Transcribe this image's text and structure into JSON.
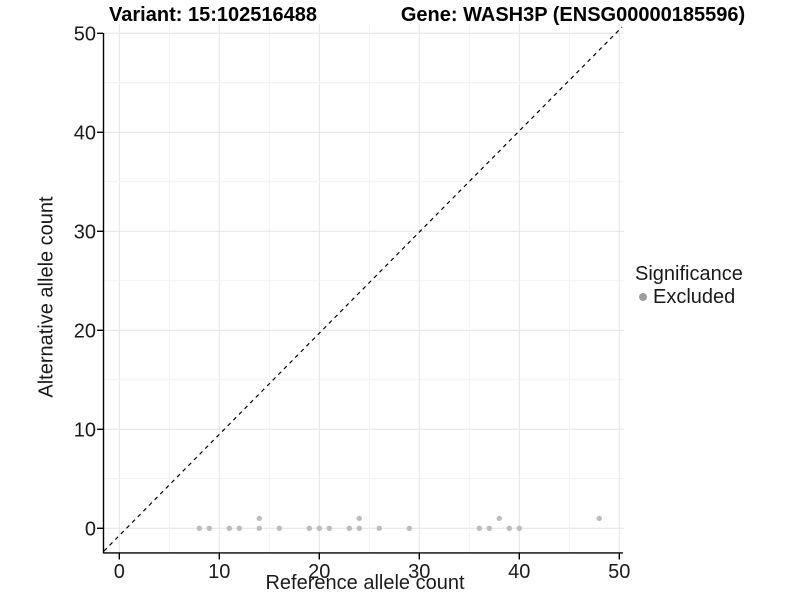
{
  "titles": {
    "left": "Variant: 15:102516488",
    "right": "Gene: WASH3P (ENSG00000185596)"
  },
  "chart_data": {
    "type": "scatter",
    "xlabel": "Reference allele count",
    "ylabel": "Alternative allele count",
    "xlim": [
      -2,
      52
    ],
    "ylim": [
      -2.5,
      51
    ],
    "xticks": [
      0,
      10,
      20,
      30,
      40,
      50
    ],
    "yticks": [
      0,
      10,
      20,
      30,
      40,
      50
    ],
    "grid": {
      "major_every": 10,
      "minor_every": 5,
      "major_color": "#e3e3e3",
      "minor_color": "#f1f1f1"
    },
    "reference_line": {
      "equation": "y = x",
      "style": "dashed",
      "color": "#000000"
    },
    "series": [
      {
        "name": "Excluded",
        "color": "#bdbdbd",
        "points": [
          [
            8,
            0
          ],
          [
            9,
            0
          ],
          [
            11,
            0
          ],
          [
            12,
            0
          ],
          [
            14,
            0
          ],
          [
            14,
            1
          ],
          [
            16,
            0
          ],
          [
            19,
            0
          ],
          [
            20,
            0
          ],
          [
            21,
            0
          ],
          [
            23,
            0
          ],
          [
            24,
            0
          ],
          [
            24,
            1
          ],
          [
            26,
            0
          ],
          [
            29,
            0
          ],
          [
            36,
            0
          ],
          [
            37,
            0
          ],
          [
            38,
            1
          ],
          [
            39,
            0
          ],
          [
            40,
            0
          ],
          [
            48,
            1
          ]
        ]
      }
    ],
    "legend": {
      "title": "Significance",
      "position": "right",
      "entries": [
        {
          "label": "Excluded",
          "color": "#9e9e9e"
        }
      ]
    },
    "axis_color": "#000000",
    "tick_label_color": "#1a1a1a"
  }
}
